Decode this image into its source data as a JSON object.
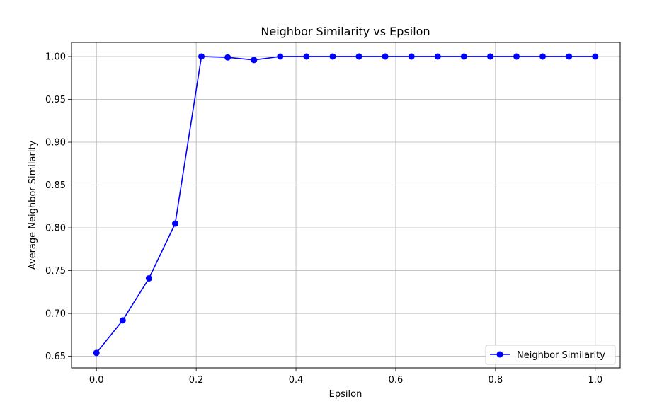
{
  "chart_data": {
    "type": "line",
    "title": "Neighbor Similarity vs Epsilon",
    "xlabel": "Epsilon",
    "ylabel": "Average Neighbor Similarity",
    "xlim": [
      -0.05,
      1.05
    ],
    "ylim": [
      0.6365,
      1.0165
    ],
    "xticks": [
      0.0,
      0.2,
      0.4,
      0.6,
      0.8,
      1.0
    ],
    "xtick_labels": [
      "0.0",
      "0.2",
      "0.4",
      "0.6",
      "0.8",
      "1.0"
    ],
    "yticks": [
      0.65,
      0.7,
      0.75,
      0.8,
      0.85,
      0.9,
      0.95,
      1.0
    ],
    "ytick_labels": [
      "0.65",
      "0.70",
      "0.75",
      "0.80",
      "0.85",
      "0.90",
      "0.95",
      "1.00"
    ],
    "grid": true,
    "legend_position": "bottom-right",
    "series": [
      {
        "name": "Neighbor Similarity",
        "color": "#0000ff",
        "marker": "circle",
        "x": [
          0.0,
          0.0526,
          0.1053,
          0.1579,
          0.2105,
          0.2632,
          0.3158,
          0.3684,
          0.4211,
          0.4737,
          0.5263,
          0.5789,
          0.6316,
          0.6842,
          0.7368,
          0.7895,
          0.8421,
          0.8947,
          0.9474,
          1.0
        ],
        "y": [
          0.654,
          0.692,
          0.741,
          0.805,
          1.0,
          0.999,
          0.996,
          1.0,
          1.0,
          1.0,
          1.0,
          1.0,
          1.0,
          1.0,
          1.0,
          1.0,
          1.0,
          1.0,
          1.0,
          1.0
        ]
      }
    ]
  }
}
